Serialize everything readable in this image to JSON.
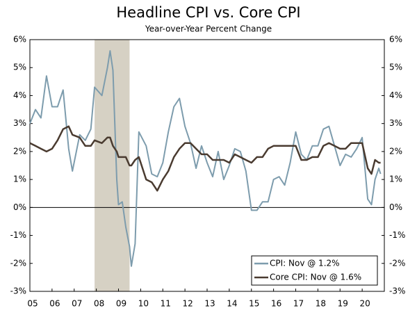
{
  "chart_data": {
    "type": "line",
    "title": "Headline CPI vs. Core CPI",
    "subtitle": "Year-over-Year Percent Change",
    "x": [
      2005,
      2005.25,
      2005.5,
      2005.75,
      2006,
      2006.25,
      2006.5,
      2006.75,
      2006.92,
      2007.25,
      2007.5,
      2007.75,
      2007.92,
      2008.25,
      2008.5,
      2008.62,
      2008.75,
      2008.92,
      2009,
      2009.17,
      2009.33,
      2009.5,
      2009.58,
      2009.75,
      2009.92,
      2010.25,
      2010.5,
      2010.75,
      2011,
      2011.25,
      2011.5,
      2011.75,
      2012,
      2012.25,
      2012.5,
      2012.75,
      2013,
      2013.25,
      2013.5,
      2013.75,
      2014,
      2014.25,
      2014.5,
      2014.75,
      2015,
      2015.25,
      2015.5,
      2015.75,
      2016,
      2016.25,
      2016.5,
      2016.75,
      2017,
      2017.25,
      2017.5,
      2017.75,
      2018,
      2018.25,
      2018.5,
      2018.75,
      2019,
      2019.25,
      2019.5,
      2019.75,
      2020,
      2020.25,
      2020.42,
      2020.58,
      2020.75,
      2020.83
    ],
    "series": [
      {
        "name": "CPI: Nov @ 1.2%",
        "color": "#7d9cad",
        "values": [
          3.0,
          3.5,
          3.2,
          4.7,
          3.6,
          3.6,
          4.2,
          2.1,
          1.3,
          2.6,
          2.4,
          2.8,
          4.3,
          4.0,
          5.0,
          5.6,
          4.9,
          1.0,
          0.1,
          0.2,
          -0.7,
          -1.4,
          -2.1,
          -1.3,
          2.7,
          2.2,
          1.2,
          1.1,
          1.6,
          2.7,
          3.6,
          3.9,
          2.9,
          2.3,
          1.4,
          2.2,
          1.6,
          1.1,
          2.0,
          1.0,
          1.5,
          2.1,
          2.0,
          1.3,
          -0.1,
          -0.1,
          0.2,
          0.2,
          1.0,
          1.1,
          0.8,
          1.6,
          2.7,
          1.9,
          1.7,
          2.2,
          2.2,
          2.8,
          2.9,
          2.2,
          1.5,
          1.9,
          1.8,
          2.1,
          2.5,
          0.3,
          0.1,
          1.0,
          1.4,
          1.2
        ]
      },
      {
        "name": "Core CPI: Nov @ 1.6%",
        "color": "#4a3b30",
        "values": [
          2.3,
          2.2,
          2.1,
          2.0,
          2.1,
          2.4,
          2.8,
          2.9,
          2.6,
          2.5,
          2.2,
          2.2,
          2.4,
          2.3,
          2.5,
          2.5,
          2.2,
          2.0,
          1.8,
          1.8,
          1.8,
          1.5,
          1.5,
          1.7,
          1.8,
          1.0,
          0.9,
          0.6,
          1.0,
          1.3,
          1.8,
          2.1,
          2.3,
          2.3,
          2.1,
          1.9,
          1.9,
          1.7,
          1.7,
          1.7,
          1.6,
          1.9,
          1.8,
          1.7,
          1.6,
          1.8,
          1.8,
          2.1,
          2.2,
          2.2,
          2.2,
          2.2,
          2.2,
          1.7,
          1.7,
          1.8,
          1.8,
          2.2,
          2.3,
          2.2,
          2.1,
          2.1,
          2.3,
          2.3,
          2.3,
          1.4,
          1.2,
          1.7,
          1.6,
          1.6
        ]
      }
    ],
    "xlim": [
      2005,
      2021
    ],
    "xticks": [
      {
        "value": 2005,
        "label": "05"
      },
      {
        "value": 2006,
        "label": "06"
      },
      {
        "value": 2007,
        "label": "07"
      },
      {
        "value": 2008,
        "label": "08"
      },
      {
        "value": 2009,
        "label": "09"
      },
      {
        "value": 2010,
        "label": "10"
      },
      {
        "value": 2011,
        "label": "11"
      },
      {
        "value": 2012,
        "label": "12"
      },
      {
        "value": 2013,
        "label": "13"
      },
      {
        "value": 2014,
        "label": "14"
      },
      {
        "value": 2015,
        "label": "15"
      },
      {
        "value": 2016,
        "label": "16"
      },
      {
        "value": 2017,
        "label": "17"
      },
      {
        "value": 2018,
        "label": "18"
      },
      {
        "value": 2019,
        "label": "19"
      },
      {
        "value": 2020,
        "label": "20"
      }
    ],
    "ylim": [
      -3,
      6
    ],
    "yticks": [
      {
        "value": -3,
        "label": "-3%"
      },
      {
        "value": -2,
        "label": "-2%"
      },
      {
        "value": -1,
        "label": "-1%"
      },
      {
        "value": 0,
        "label": "0%"
      },
      {
        "value": 1,
        "label": "1%"
      },
      {
        "value": 2,
        "label": "2%"
      },
      {
        "value": 3,
        "label": "3%"
      },
      {
        "value": 4,
        "label": "4%"
      },
      {
        "value": 5,
        "label": "5%"
      },
      {
        "value": 6,
        "label": "6%"
      }
    ],
    "recession": {
      "start": 2007.92,
      "end": 2009.5,
      "color": "#d6d1c4"
    },
    "legend": "lower right"
  }
}
